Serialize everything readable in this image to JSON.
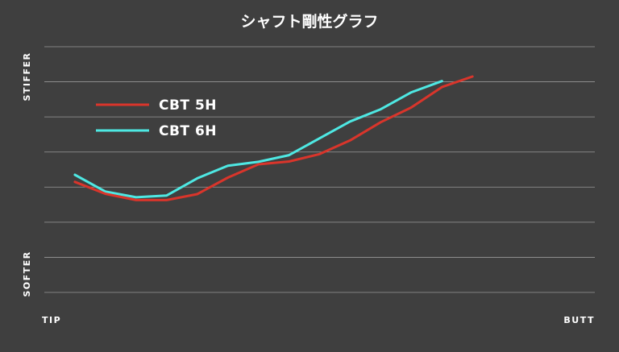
{
  "chart_data": {
    "type": "line",
    "title": "シャフト剛性グラフ",
    "ylabel_top": "STIFFER",
    "ylabel_bottom": "SOFTER",
    "xlabel_left": "TIP",
    "xlabel_right": "BUTT",
    "grid": true,
    "legend_position": "top-left",
    "ylim": [
      0,
      7
    ],
    "xlim": [
      0,
      18
    ],
    "series": [
      {
        "name": "CBT 5H",
        "color": "#d9352b",
        "x": [
          1,
          2,
          3,
          4,
          5,
          6,
          7,
          8,
          9,
          10,
          11,
          12,
          13,
          14,
          15
        ],
        "y": [
          3.15,
          2.81,
          2.63,
          2.63,
          2.8,
          3.27,
          3.65,
          3.73,
          3.94,
          4.33,
          4.85,
          5.27,
          5.85,
          6.15,
          null
        ]
      },
      {
        "name": "CBT 6H",
        "color": "#4ee8e3",
        "x": [
          1,
          2,
          3,
          4,
          5,
          6,
          7,
          8,
          9,
          10,
          11,
          12,
          13,
          14
        ],
        "y": [
          3.35,
          2.87,
          2.71,
          2.76,
          3.25,
          3.61,
          3.72,
          3.91,
          4.39,
          4.87,
          5.22,
          5.7,
          6.02,
          null
        ]
      }
    ]
  }
}
